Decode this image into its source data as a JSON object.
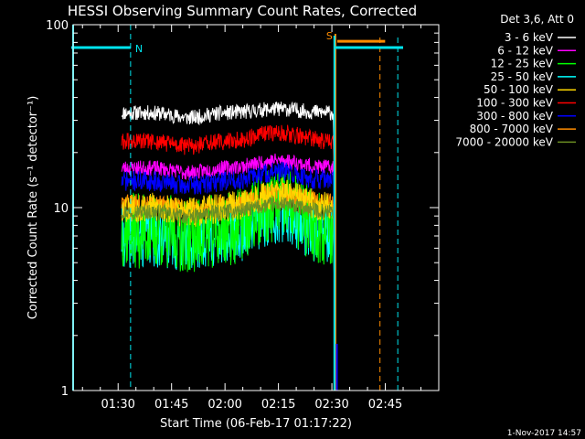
{
  "chart_data": {
    "type": "line",
    "title": "HESSI Observing Summary Count Rates, Corrected",
    "xlabel": "Start Time (06-Feb-17 01:17:22)",
    "ylabel": "Corrected Count Rate (s⁻¹ detector⁻¹)",
    "yscale": "log",
    "ylim": [
      1,
      100
    ],
    "xlim_minutes_utc": [
      77.37,
      180
    ],
    "x_ticks": [
      {
        "label": "01:30",
        "minute": 90
      },
      {
        "label": "01:45",
        "minute": 105
      },
      {
        "label": "02:00",
        "minute": 120
      },
      {
        "label": "02:15",
        "minute": 135
      },
      {
        "label": "02:30",
        "minute": 150
      },
      {
        "label": "02:45",
        "minute": 165
      }
    ],
    "y_ticks": [
      {
        "label": "1",
        "value": 1
      },
      {
        "label": "10",
        "value": 10
      },
      {
        "label": "100",
        "value": 100
      }
    ],
    "legend": {
      "title": "Det 3,6, Att 0",
      "placement": "outside-right"
    },
    "series": [
      {
        "name": "3 - 6 keV",
        "color": "#ffffff",
        "mean": 33,
        "noise": 0.06,
        "bump": 0.05,
        "start": 91,
        "end": 150.5,
        "seed": 11
      },
      {
        "name": "6 - 12 keV",
        "color": "#ff00ff",
        "mean": 16.5,
        "noise": 0.06,
        "bump": 0.1,
        "start": 91,
        "end": 150.5,
        "seed": 23
      },
      {
        "name": "12 - 25 keV",
        "color": "#00ff00",
        "mean": 7.5,
        "noise": 0.3,
        "bump": 0.4,
        "start": 91,
        "end": 150.5,
        "seed": 37
      },
      {
        "name": "25 - 50 keV",
        "color": "#00ffff",
        "mean": 7,
        "noise": 0.25,
        "bump": 0.35,
        "start": 91,
        "end": 150.5,
        "seed": 41
      },
      {
        "name": "50 - 100 keV",
        "color": "#ffd700",
        "mean": 10,
        "noise": 0.12,
        "bump": 0.2,
        "start": 91,
        "end": 150.5,
        "seed": 53
      },
      {
        "name": "100 - 300 keV",
        "color": "#ff0000",
        "mean": 23,
        "noise": 0.07,
        "bump": 0.12,
        "start": 91,
        "end": 150.5,
        "seed": 61
      },
      {
        "name": "300 - 800 keV",
        "color": "#0000ff",
        "mean": 14,
        "noise": 0.08,
        "bump": 0.12,
        "start": 91,
        "end": 150.5,
        "seed": 71
      },
      {
        "name": "800 - 7000 keV",
        "color": "#ff8c00",
        "mean": 10.5,
        "noise": 0.08,
        "bump": 0.15,
        "start": 91,
        "end": 150.5,
        "seed": 83
      },
      {
        "name": "7000 - 20000 keV",
        "color": "#6b8e23",
        "mean": 9.5,
        "noise": 0.06,
        "bump": 0.1,
        "start": 91,
        "end": 150.5,
        "seed": 97
      }
    ],
    "annotations": {
      "night": {
        "label": "N",
        "color": "#00e5ee",
        "start_minute": 77.37,
        "end_minute": 93.5,
        "level": 75,
        "dashed_minute": 93.5
      },
      "saa": {
        "label": "S",
        "color": "#ff8c00",
        "start_minute": 151.5,
        "end_minute": 167,
        "level": 85,
        "dashed_minute": 163.5
      },
      "night2": {
        "color": "#00e5ee",
        "start_minute": 151,
        "end_minute": 170,
        "level": 75,
        "dashed_minute": 168.5,
        "solid_minute": 150.7
      }
    },
    "footer_date": "1-Nov-2017 14:57"
  }
}
